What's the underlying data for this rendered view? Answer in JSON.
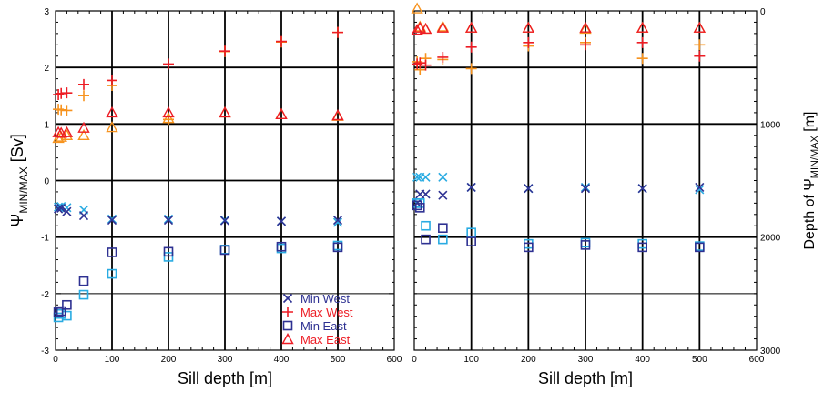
{
  "chart_data": [
    {
      "type": "scatter",
      "xlabel": "Sill depth [m]",
      "ylabel_main": "Ψ",
      "ylabel_sub": "MIN/MAX",
      "ylabel_unit": " [Sv]",
      "xlim": [
        0,
        600
      ],
      "ylim": [
        -3,
        3
      ],
      "xticks": [
        0,
        100,
        200,
        300,
        400,
        500,
        600
      ],
      "yticks": [
        -3,
        -2,
        -1,
        0,
        1,
        2,
        3
      ],
      "grid": true,
      "legend_position": "bottom-right",
      "legend": [
        {
          "label": "Min West",
          "marker": "x",
          "color": "#2e3192"
        },
        {
          "label": "Max West",
          "marker": "+",
          "color": "#ed1c24"
        },
        {
          "label": "Min East",
          "marker": "square",
          "color": "#2e3192"
        },
        {
          "label": "Max East",
          "marker": "triangle",
          "color": "#ed1c24"
        }
      ],
      "series": [
        {
          "marker": "x",
          "color": "#29abe2",
          "points": [
            [
              5,
              -0.47
            ],
            [
              10,
              -0.46
            ],
            [
              20,
              -0.48
            ],
            [
              50,
              -0.52
            ],
            [
              100,
              -0.68
            ],
            [
              200,
              -0.68
            ],
            [
              300,
              -0.7
            ],
            [
              400,
              -0.72
            ],
            [
              500,
              -0.74
            ]
          ]
        },
        {
          "marker": "x",
          "color": "#2e3192",
          "points": [
            [
              5,
              -0.5
            ],
            [
              10,
              -0.49
            ],
            [
              20,
              -0.55
            ],
            [
              50,
              -0.62
            ],
            [
              100,
              -0.7
            ],
            [
              200,
              -0.7
            ],
            [
              300,
              -0.71
            ],
            [
              400,
              -0.72
            ],
            [
              500,
              -0.7
            ]
          ]
        },
        {
          "marker": "+",
          "color": "#f7931e",
          "points": [
            [
              5,
              1.26
            ],
            [
              10,
              1.25
            ],
            [
              20,
              1.24
            ],
            [
              50,
              1.5
            ],
            [
              100,
              1.68
            ],
            [
              200,
              1.08
            ],
            [
              300,
              2.28
            ],
            [
              400,
              2.45
            ],
            [
              500,
              2.62
            ]
          ]
        },
        {
          "marker": "+",
          "color": "#ed1c24",
          "points": [
            [
              5,
              1.52
            ],
            [
              10,
              1.54
            ],
            [
              20,
              1.55
            ],
            [
              50,
              1.7
            ],
            [
              100,
              1.77
            ],
            [
              200,
              2.06
            ],
            [
              300,
              2.29
            ],
            [
              400,
              2.46
            ],
            [
              500,
              2.62
            ]
          ]
        },
        {
          "marker": "square",
          "color": "#29abe2",
          "points": [
            [
              5,
              -2.42
            ],
            [
              10,
              -2.36
            ],
            [
              20,
              -2.39
            ],
            [
              50,
              -2.02
            ],
            [
              100,
              -1.65
            ],
            [
              200,
              -1.35
            ],
            [
              300,
              -1.22
            ],
            [
              400,
              -1.2
            ],
            [
              500,
              -1.15
            ]
          ]
        },
        {
          "marker": "square",
          "color": "#2e3192",
          "points": [
            [
              5,
              -2.33
            ],
            [
              10,
              -2.31
            ],
            [
              20,
              -2.2
            ],
            [
              50,
              -1.78
            ],
            [
              100,
              -1.27
            ],
            [
              200,
              -1.26
            ],
            [
              300,
              -1.23
            ],
            [
              400,
              -1.17
            ],
            [
              500,
              -1.18
            ]
          ]
        },
        {
          "marker": "triangle",
          "color": "#f7931e",
          "points": [
            [
              5,
              0.75
            ],
            [
              10,
              0.77
            ],
            [
              20,
              0.8
            ],
            [
              50,
              0.8
            ],
            [
              100,
              0.94
            ],
            [
              200,
              1.1
            ],
            [
              300,
              1.2
            ],
            [
              400,
              1.17
            ],
            [
              500,
              1.14
            ]
          ]
        },
        {
          "marker": "triangle",
          "color": "#ed1c24",
          "points": [
            [
              5,
              0.85
            ],
            [
              10,
              0.84
            ],
            [
              20,
              0.85
            ],
            [
              50,
              0.93
            ],
            [
              100,
              1.2
            ],
            [
              200,
              1.2
            ],
            [
              300,
              1.2
            ],
            [
              400,
              1.17
            ],
            [
              500,
              1.15
            ]
          ]
        }
      ]
    },
    {
      "type": "scatter",
      "xlabel": "Sill depth [m]",
      "ylabel_prefix": "Depth of ",
      "ylabel_main": "Ψ",
      "ylabel_sub": "MIN/MAX",
      "ylabel_unit": " [m]",
      "xlim": [
        0,
        600
      ],
      "ylim": [
        3000,
        0
      ],
      "xticks": [
        0,
        100,
        200,
        300,
        400,
        500,
        600
      ],
      "yticks": [
        0,
        1000,
        2000,
        3000
      ],
      "grid": true,
      "series": [
        {
          "marker": "x",
          "color": "#29abe2",
          "points": [
            [
              5,
              1470
            ],
            [
              10,
              1470
            ],
            [
              20,
              1470
            ],
            [
              50,
              1470
            ],
            [
              100,
              1560
            ],
            [
              200,
              1570
            ],
            [
              300,
              1560
            ],
            [
              400,
              1570
            ],
            [
              500,
              1580
            ]
          ]
        },
        {
          "marker": "x",
          "color": "#2e3192",
          "points": [
            [
              5,
              1700
            ],
            [
              10,
              1620
            ],
            [
              20,
              1620
            ],
            [
              50,
              1630
            ],
            [
              100,
              1560
            ],
            [
              200,
              1570
            ],
            [
              300,
              1570
            ],
            [
              400,
              1570
            ],
            [
              500,
              1560
            ]
          ]
        },
        {
          "marker": "+",
          "color": "#f7931e",
          "points": [
            [
              5,
              450
            ],
            [
              10,
              520
            ],
            [
              20,
              420
            ],
            [
              50,
              430
            ],
            [
              100,
              510
            ],
            [
              200,
              310
            ],
            [
              300,
              280
            ],
            [
              400,
              420
            ],
            [
              500,
              300
            ]
          ]
        },
        {
          "marker": "+",
          "color": "#ed1c24",
          "points": [
            [
              5,
              470
            ],
            [
              10,
              460
            ],
            [
              20,
              480
            ],
            [
              50,
              410
            ],
            [
              100,
              320
            ],
            [
              200,
              280
            ],
            [
              300,
              300
            ],
            [
              400,
              280
            ],
            [
              500,
              400
            ]
          ]
        },
        {
          "marker": "square",
          "color": "#29abe2",
          "points": [
            [
              5,
              1700
            ],
            [
              10,
              1700
            ],
            [
              20,
              1900
            ],
            [
              50,
              2020
            ],
            [
              100,
              1960
            ],
            [
              200,
              2060
            ],
            [
              300,
              2050
            ],
            [
              400,
              2060
            ],
            [
              500,
              2080
            ]
          ]
        },
        {
          "marker": "square",
          "color": "#2e3192",
          "points": [
            [
              5,
              1720
            ],
            [
              10,
              1740
            ],
            [
              20,
              2020
            ],
            [
              50,
              1920
            ],
            [
              100,
              2040
            ],
            [
              200,
              2090
            ],
            [
              300,
              2070
            ],
            [
              400,
              2090
            ],
            [
              500,
              2090
            ]
          ]
        },
        {
          "marker": "triangle",
          "color": "#f7931e",
          "points": [
            [
              5,
              -20
            ],
            [
              10,
              140
            ],
            [
              20,
              160
            ],
            [
              50,
              140
            ],
            [
              100,
              150
            ],
            [
              200,
              150
            ],
            [
              300,
              160
            ],
            [
              400,
              150
            ],
            [
              500,
              150
            ]
          ]
        },
        {
          "marker": "triangle",
          "color": "#ed1c24",
          "points": [
            [
              5,
              170
            ],
            [
              10,
              150
            ],
            [
              20,
              160
            ],
            [
              50,
              150
            ],
            [
              100,
              150
            ],
            [
              200,
              150
            ],
            [
              300,
              150
            ],
            [
              400,
              150
            ],
            [
              500,
              150
            ]
          ]
        }
      ]
    }
  ]
}
